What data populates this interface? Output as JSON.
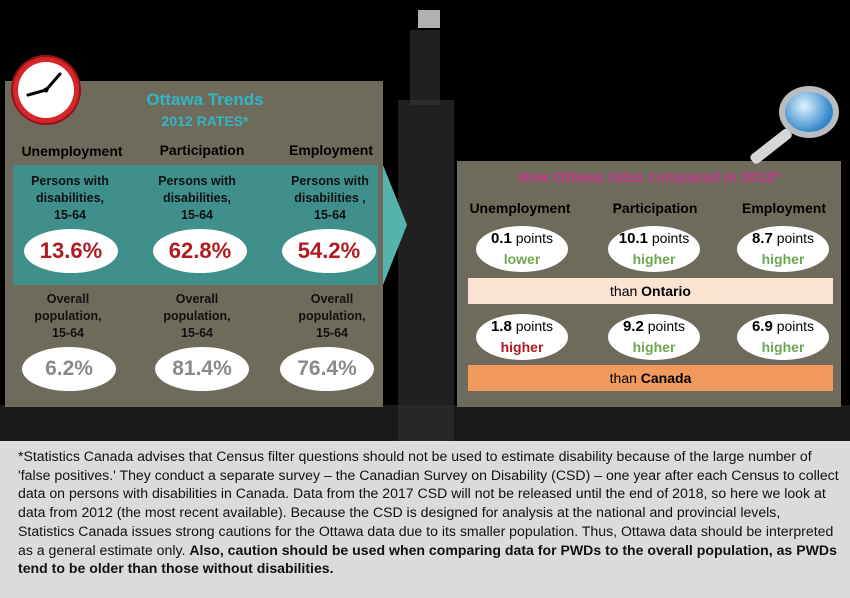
{
  "left": {
    "title": "Ottawa Trends",
    "subtitle": "2012 RATES*",
    "columns": [
      "Unemployment",
      "Participation",
      "Employment"
    ],
    "pwd_labels": [
      "Persons with\ndisabilities,\n15-64",
      "Persons with\ndisabilities,\n15-64",
      "Persons with\ndisabilities ,\n15-64"
    ],
    "pwd_values": [
      "13.6%",
      "62.8%",
      "54.2%"
    ],
    "overall_labels": [
      "Overall\npopulation,\n15-64",
      "Overall\npopulation,\n15-64",
      "Overall\npopulation,\n15-64"
    ],
    "overall_values": [
      "6.2%",
      "81.4%",
      "76.4%"
    ]
  },
  "right": {
    "title": "How Ottawa rates compared in 2012*",
    "columns": [
      "Unemployment",
      "Participation",
      "Employment"
    ],
    "ontario": [
      {
        "num": "0.1",
        "unit": "points",
        "dir": "lower"
      },
      {
        "num": "10.1",
        "unit": "points",
        "dir": "higher"
      },
      {
        "num": "8.7",
        "unit": "points",
        "dir": "higher"
      }
    ],
    "canada": [
      {
        "num": "1.8",
        "unit": "points",
        "dir": "higher"
      },
      {
        "num": "9.2",
        "unit": "points",
        "dir": "higher"
      },
      {
        "num": "6.9",
        "unit": "points",
        "dir": "higher"
      }
    ],
    "than_ontario_prefix": "than",
    "than_ontario_bold": "Ontario",
    "than_canada_prefix": "than",
    "than_canada_bold": "Canada"
  },
  "footnote": {
    "text": "*Statistics Canada advises that Census filter questions should not be used to estimate disability because of the large number of 'false positives.' They conduct a separate survey – the Canadian Survey on Disability (CSD) – one year after each Census to collect data on persons with disabilities in Canada. Data from the 2017 CSD will not be released until the end of 2018, so here we look at data from 2012 (the most recent available). Because the CSD is designed for analysis at the national and provincial levels, Statistics Canada issues strong cautions for the Ottawa data due to its smaller population. Thus, Ottawa data should be interpreted as a general estimate only. ",
    "bold": "Also, caution should be used when comparing data for PWDs to the overall population, as PWDs tend to be older than those without disabilities."
  },
  "icons": [
    "clock-icon",
    "magnifier-icon"
  ]
}
